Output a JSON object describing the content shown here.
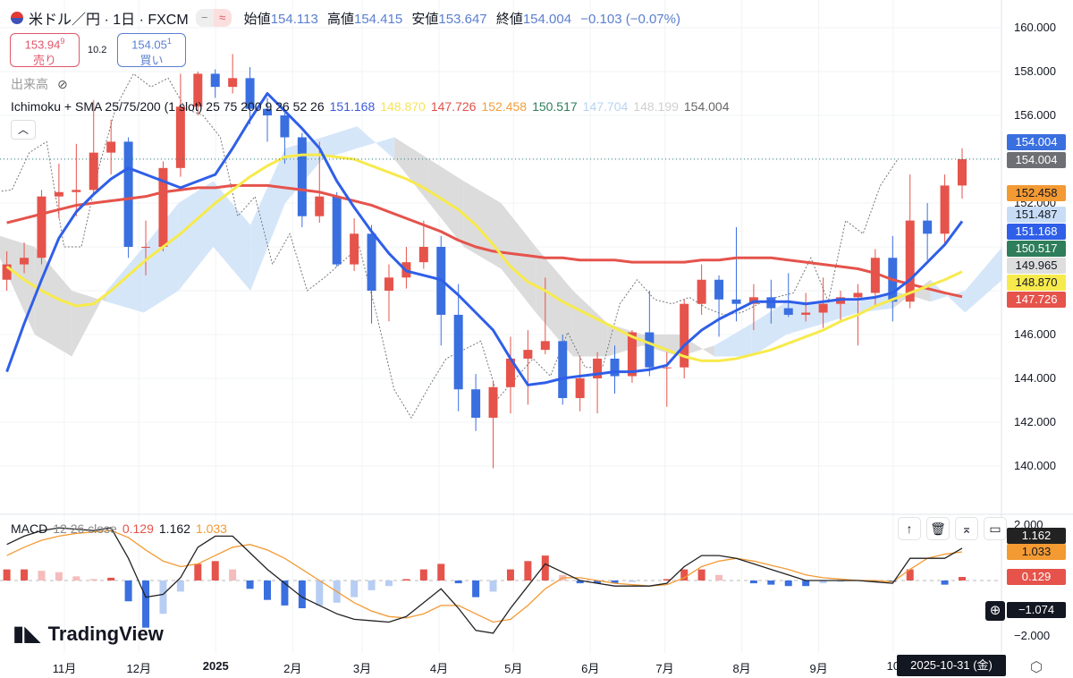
{
  "header": {
    "symbol": "米ドル／円 · 1日 · FXCM",
    "open_label": "始値",
    "open": "154.113",
    "high_label": "高値",
    "high": "154.415",
    "low_label": "安値",
    "low": "153.647",
    "close_label": "終値",
    "close": "154.004",
    "change": "−0.103 (−0.07%)",
    "pill_left": "−",
    "pill_right": "≈"
  },
  "trade": {
    "sell_price": "153.94",
    "sell_sup": "9",
    "sell_label": "売り",
    "spread": "10.2",
    "buy_price": "154.05",
    "buy_sup": "1",
    "buy_label": "買い"
  },
  "volume_label": "出来高",
  "indicator": {
    "name": "Ichimoku + SMA 25/75/200 (1 slot) 25 75 200 9 26 52 26",
    "values": [
      "151.168",
      "148.870",
      "147.726",
      "152.458",
      "150.517",
      "147.704",
      "148.199",
      "154.004"
    ],
    "colors": [
      "#3a5bd9",
      "#f5e35a",
      "#e0504a",
      "#f0a03a",
      "#2e7d5b",
      "#b9d3f0",
      "#d0d0d0",
      "#666666"
    ]
  },
  "macd": {
    "name": "MACD",
    "params": "12 26 close",
    "hist_val": "0.129",
    "macd_val": "1.162",
    "signal_val": "1.033"
  },
  "price_axis": {
    "ticks": [
      "160.000",
      "158.000",
      "156.000",
      "152.000",
      "146.000",
      "144.000",
      "142.000",
      "140.000"
    ]
  },
  "price_labels": [
    {
      "text": "154.004",
      "bg": "#3a6fe0",
      "fg": "#ffffff"
    },
    {
      "text": "154.004",
      "bg": "#6e6f74",
      "fg": "#ffffff"
    },
    {
      "text": "152.458",
      "bg": "#f39a33",
      "fg": "#131722"
    },
    {
      "text": "151.487",
      "bg": "#c8ddf5",
      "fg": "#131722"
    },
    {
      "text": "151.168",
      "bg": "#2f5fe8",
      "fg": "#ffffff"
    },
    {
      "text": "150.517",
      "bg": "#2e7d5b",
      "fg": "#ffffff"
    },
    {
      "text": "149.965",
      "bg": "#dedede",
      "fg": "#131722"
    },
    {
      "text": "148.870",
      "bg": "#f7ea4c",
      "fg": "#131722"
    },
    {
      "text": "147.726",
      "bg": "#e5534b",
      "fg": "#ffffff"
    }
  ],
  "macd_axis": {
    "top": "2.000",
    "bottom": "−2.000",
    "labels": [
      {
        "text": "1.162",
        "bg": "#222222",
        "fg": "#ffffff"
      },
      {
        "text": "1.033",
        "bg": "#f39a33",
        "fg": "#131722"
      },
      {
        "text": "0.129",
        "bg": "#e5534b",
        "fg": "#ffffff"
      }
    ],
    "crosshair": "−1.074"
  },
  "tools": {
    "up": "↑",
    "trash": "🗑",
    "collapse": "⌅",
    "maximize": "▭"
  },
  "brand": "TradingView",
  "months": [
    {
      "label": "11月",
      "date": "2024-11-01"
    },
    {
      "label": "12月",
      "date": "2024-12-01"
    },
    {
      "label": "2025",
      "date": "2025-01-01"
    },
    {
      "label": "2月",
      "date": "2025-02-01"
    },
    {
      "label": "3月",
      "date": "2025-03-01"
    },
    {
      "label": "4月",
      "date": "2025-04-01"
    },
    {
      "label": "5月",
      "date": "2025-05-01"
    },
    {
      "label": "6月",
      "date": "2025-06-01"
    },
    {
      "label": "7月",
      "date": "2025-07-01"
    },
    {
      "label": "8月",
      "date": "2025-08-01"
    },
    {
      "label": "9月",
      "date": "2025-09-01"
    },
    {
      "label": "10",
      "date": "2025-10-01"
    }
  ],
  "date_tooltip": "2025-10-31 (金)",
  "chart_data": {
    "type": "candlestick",
    "ylim": [
      139,
      161
    ],
    "macd_ylim": [
      -2.6,
      2.6
    ],
    "colors": {
      "up": "#e5534b",
      "down": "#3a6fe0",
      "sma25": "#2f5fe8",
      "sma75": "#f7ea4c",
      "sma200": "#e5534b",
      "cloud_up": "#cfe2f8",
      "cloud_down": "#d6d6d6",
      "macd": "#222222",
      "signal": "#f39a33"
    },
    "weeks": [
      "2024-10-07",
      "2024-10-14",
      "2024-10-21",
      "2024-10-28",
      "2024-11-04",
      "2024-11-11",
      "2024-11-18",
      "2024-11-25",
      "2024-12-02",
      "2024-12-09",
      "2024-12-16",
      "2024-12-23",
      "2024-12-30",
      "2025-01-06",
      "2025-01-13",
      "2025-01-20",
      "2025-01-27",
      "2025-02-03",
      "2025-02-10",
      "2025-02-17",
      "2025-02-24",
      "2025-03-03",
      "2025-03-10",
      "2025-03-17",
      "2025-03-24",
      "2025-03-31",
      "2025-04-07",
      "2025-04-14",
      "2025-04-21",
      "2025-04-28",
      "2025-05-05",
      "2025-05-12",
      "2025-05-19",
      "2025-05-26",
      "2025-06-02",
      "2025-06-09",
      "2025-06-16",
      "2025-06-23",
      "2025-06-30",
      "2025-07-07",
      "2025-07-14",
      "2025-07-21",
      "2025-07-28",
      "2025-08-04",
      "2025-08-11",
      "2025-08-18",
      "2025-08-25",
      "2025-09-01",
      "2025-09-08",
      "2025-09-15",
      "2025-09-22",
      "2025-09-29",
      "2025-10-06",
      "2025-10-13",
      "2025-10-20",
      "2025-10-27"
    ],
    "ohlc": [
      [
        148.5,
        149.8,
        148.0,
        149.2
      ],
      [
        149.2,
        150.2,
        148.8,
        149.5
      ],
      [
        149.5,
        152.6,
        149.2,
        152.3
      ],
      [
        152.3,
        153.8,
        151.3,
        152.5
      ],
      [
        152.5,
        154.7,
        151.4,
        152.6
      ],
      [
        152.6,
        156.7,
        152.4,
        154.3
      ],
      [
        154.3,
        155.8,
        153.3,
        154.8
      ],
      [
        154.8,
        155.0,
        149.5,
        150.0
      ],
      [
        150.0,
        151.2,
        148.7,
        150.0
      ],
      [
        150.0,
        153.9,
        149.8,
        153.6
      ],
      [
        153.6,
        157.9,
        153.2,
        156.4
      ],
      [
        156.4,
        158.0,
        156.0,
        157.9
      ],
      [
        157.9,
        158.1,
        156.8,
        157.3
      ],
      [
        157.3,
        158.8,
        157.0,
        157.7
      ],
      [
        157.7,
        158.2,
        155.6,
        156.3
      ],
      [
        156.3,
        156.8,
        154.8,
        156.0
      ],
      [
        156.0,
        156.1,
        153.8,
        155.0
      ],
      [
        155.0,
        155.2,
        150.9,
        151.4
      ],
      [
        151.4,
        154.8,
        151.1,
        152.3
      ],
      [
        152.3,
        152.5,
        149.1,
        149.2
      ],
      [
        149.2,
        151.3,
        148.9,
        150.6
      ],
      [
        150.6,
        151.0,
        146.5,
        148.0
      ],
      [
        148.0,
        149.2,
        146.6,
        148.6
      ],
      [
        148.6,
        150.0,
        148.1,
        149.3
      ],
      [
        149.3,
        151.2,
        149.0,
        150.0
      ],
      [
        150.0,
        150.5,
        145.5,
        146.9
      ],
      [
        146.9,
        148.3,
        142.5,
        143.5
      ],
      [
        143.5,
        144.2,
        141.6,
        142.2
      ],
      [
        142.2,
        143.9,
        139.9,
        143.6
      ],
      [
        143.6,
        145.9,
        142.4,
        144.9
      ],
      [
        144.9,
        146.2,
        142.8,
        145.3
      ],
      [
        145.3,
        148.6,
        145.1,
        145.7
      ],
      [
        145.7,
        146.0,
        142.8,
        143.1
      ],
      [
        143.1,
        145.0,
        142.5,
        144.0
      ],
      [
        144.0,
        145.2,
        142.4,
        144.9
      ],
      [
        144.9,
        145.5,
        143.3,
        144.1
      ],
      [
        144.1,
        146.2,
        143.8,
        146.1
      ],
      [
        146.1,
        148.0,
        144.1,
        144.5
      ],
      [
        144.5,
        145.2,
        142.7,
        144.5
      ],
      [
        144.5,
        147.6,
        144.0,
        147.4
      ],
      [
        147.4,
        149.2,
        146.9,
        148.5
      ],
      [
        148.5,
        148.7,
        145.9,
        147.6
      ],
      [
        147.6,
        150.9,
        146.6,
        147.4
      ],
      [
        147.4,
        148.3,
        146.2,
        147.7
      ],
      [
        147.7,
        148.5,
        146.5,
        147.2
      ],
      [
        147.2,
        148.8,
        146.8,
        146.9
      ],
      [
        146.9,
        147.9,
        146.6,
        147.0
      ],
      [
        147.0,
        148.6,
        146.3,
        147.4
      ],
      [
        147.4,
        148.0,
        146.6,
        147.7
      ],
      [
        147.7,
        148.3,
        145.5,
        147.9
      ],
      [
        147.9,
        149.9,
        147.3,
        149.5
      ],
      [
        149.5,
        150.5,
        146.6,
        147.5
      ],
      [
        147.5,
        153.3,
        147.2,
        151.2
      ],
      [
        151.2,
        152.0,
        149.4,
        150.6
      ],
      [
        150.6,
        153.3,
        150.1,
        152.8
      ],
      [
        152.8,
        154.5,
        152.2,
        154.0
      ]
    ],
    "sma25": [
      144.3,
      146.5,
      148.5,
      150.4,
      151.6,
      152.4,
      153.1,
      153.6,
      153.3,
      153,
      152.7,
      153,
      153.3,
      154.5,
      155.8,
      157,
      156.2,
      155.4,
      154.5,
      153,
      151.8,
      150.7,
      149.7,
      148.9,
      148.7,
      148.5,
      147.8,
      147,
      146.2,
      144.9,
      143.7,
      143.8,
      144,
      144.1,
      144.2,
      144.3,
      144.3,
      144.4,
      144.6,
      145.5,
      146.2,
      146.7,
      147.1,
      147.5,
      147.5,
      147.5,
      147.4,
      147.5,
      147.6,
      147.6,
      147.7,
      147.9,
      148.5,
      149.3,
      150.1,
      151.168
    ],
    "sma75": [
      149.1,
      148.5,
      148.0,
      147.6,
      147.3,
      147.4,
      148,
      148.7,
      149.4,
      150,
      150.6,
      151.3,
      152,
      152.6,
      153.2,
      153.7,
      154.1,
      154.2,
      154.2,
      154.1,
      154,
      153.7,
      153.4,
      153.1,
      152.7,
      152.2,
      151.7,
      151,
      150.1,
      149.1,
      148.4,
      148,
      147.5,
      147.1,
      146.7,
      146.3,
      145.9,
      145.6,
      145.3,
      145,
      144.8,
      144.8,
      144.9,
      145.1,
      145.3,
      145.6,
      145.9,
      146.2,
      146.6,
      146.9,
      147.3,
      147.6,
      147.9,
      148.2,
      148.5,
      148.87
    ],
    "sma200": [
      151.1,
      151.3,
      151.5,
      151.7,
      151.9,
      152,
      152.1,
      152.2,
      152.3,
      152.5,
      152.6,
      152.7,
      152.7,
      152.8,
      152.8,
      152.8,
      152.7,
      152.6,
      152.5,
      152.3,
      152.1,
      151.9,
      151.6,
      151.3,
      151,
      150.7,
      150.3,
      150,
      149.8,
      149.7,
      149.6,
      149.5,
      149.5,
      149.4,
      149.4,
      149.4,
      149.3,
      149.3,
      149.3,
      149.3,
      149.4,
      149.4,
      149.5,
      149.5,
      149.5,
      149.4,
      149.3,
      149.2,
      149.1,
      149,
      148.8,
      148.5,
      148.3,
      148.1,
      147.9,
      147.726
    ],
    "cloud": {
      "dates": [
        "2024-10-06",
        "2024-10-20",
        "2024-11-04",
        "2024-11-18",
        "2024-12-03",
        "2024-12-17",
        "2024-12-31",
        "2025-01-15",
        "2025-01-29",
        "2025-02-13",
        "2025-02-27",
        "2025-03-14",
        "2025-03-28",
        "2025-04-11",
        "2025-04-26",
        "2025-05-10",
        "2025-05-25",
        "2025-06-08",
        "2025-06-22",
        "2025-07-07",
        "2025-07-21",
        "2025-08-05",
        "2025-08-19",
        "2025-09-03",
        "2025-09-17",
        "2025-10-01",
        "2025-10-16",
        "2025-10-30",
        "2025-11-14"
      ],
      "span_a": [
        149.5,
        146,
        145,
        148,
        150,
        152,
        153,
        151,
        154.5,
        155,
        155.5,
        154,
        152,
        150,
        149,
        147,
        145,
        145,
        145.5,
        145,
        145.5,
        146.5,
        147.5,
        147.5,
        147.5,
        148,
        147.5,
        148,
        150
      ],
      "span_b": [
        150.5,
        150,
        148,
        147.5,
        147,
        148,
        150,
        148,
        152,
        154,
        154.5,
        155,
        154,
        153,
        152,
        150,
        148,
        146.5,
        146,
        146,
        145,
        145,
        146,
        146.5,
        147,
        147.2,
        148.5,
        147,
        148.5
      ]
    },
    "macd": [
      1.3,
      1.6,
      1.8,
      1.9,
      1.85,
      1.8,
      1.9,
      0.8,
      -0.6,
      -0.5,
      0.1,
      1.2,
      1.6,
      1.6,
      1.0,
      0.4,
      -0.1,
      -0.6,
      -0.9,
      -1.2,
      -1.4,
      -1.45,
      -1.5,
      -1.3,
      -0.8,
      -0.3,
      -1.0,
      -1.8,
      -1.9,
      -1.0,
      -0.2,
      0.6,
      0.3,
      0.0,
      -0.1,
      -0.2,
      -0.2,
      -0.2,
      -0.1,
      0.5,
      0.9,
      0.9,
      0.8,
      0.6,
      0.4,
      0.2,
      0.0,
      0.0,
      0.0,
      0.0,
      -0.05,
      -0.1,
      0.8,
      0.8,
      0.8,
      1.162
    ],
    "signal": [
      0.9,
      1.2,
      1.45,
      1.6,
      1.7,
      1.75,
      1.8,
      1.55,
      1.1,
      0.7,
      0.5,
      0.6,
      0.9,
      1.2,
      1.3,
      1.1,
      0.8,
      0.4,
      0.0,
      -0.4,
      -0.8,
      -1.1,
      -1.3,
      -1.35,
      -1.2,
      -0.9,
      -0.9,
      -1.2,
      -1.5,
      -1.4,
      -0.9,
      -0.3,
      0.1,
      0.1,
      0.0,
      -0.1,
      -0.15,
      -0.2,
      -0.15,
      0.1,
      0.5,
      0.7,
      0.8,
      0.7,
      0.55,
      0.4,
      0.2,
      0.1,
      0.05,
      0.0,
      0.0,
      -0.05,
      0.4,
      0.8,
      0.95,
      1.033
    ]
  }
}
